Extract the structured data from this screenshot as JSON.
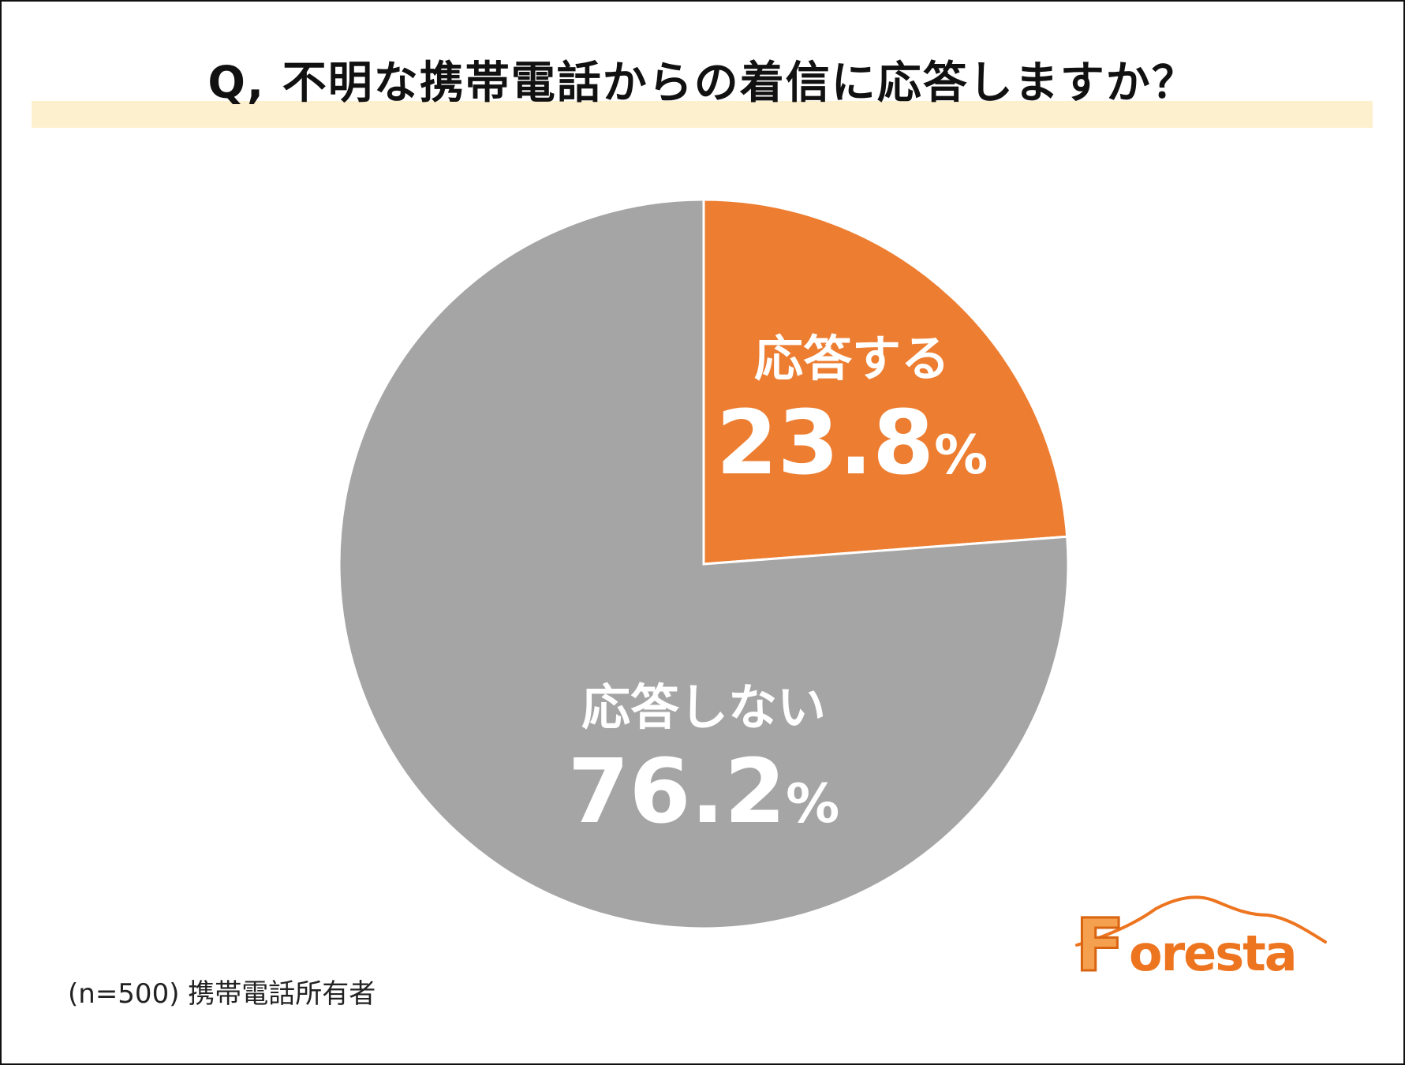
{
  "title": "Q, 不明な携帯電話からの着信に応答しますか？",
  "note": "(n=500) 携帯電話所有者",
  "logo": {
    "initial": "F",
    "rest": "oresta"
  },
  "colors": {
    "answer": "#ed7d31",
    "no_answer": "#a5a5a5",
    "title_band": "#fdf0cf",
    "logo": "#ee7520"
  },
  "chart_data": {
    "type": "pie",
    "title": "Q, 不明な携帯電話からの着信に応答しますか？",
    "unit": "%",
    "slices": [
      {
        "label": "応答する",
        "value": 23.8,
        "display": "23.8",
        "color": "#ed7d31"
      },
      {
        "label": "応答しない",
        "value": 76.2,
        "display": "76.2",
        "color": "#a5a5a5"
      }
    ],
    "start": "12 o'clock",
    "direction": "clockwise",
    "legend": "none"
  }
}
